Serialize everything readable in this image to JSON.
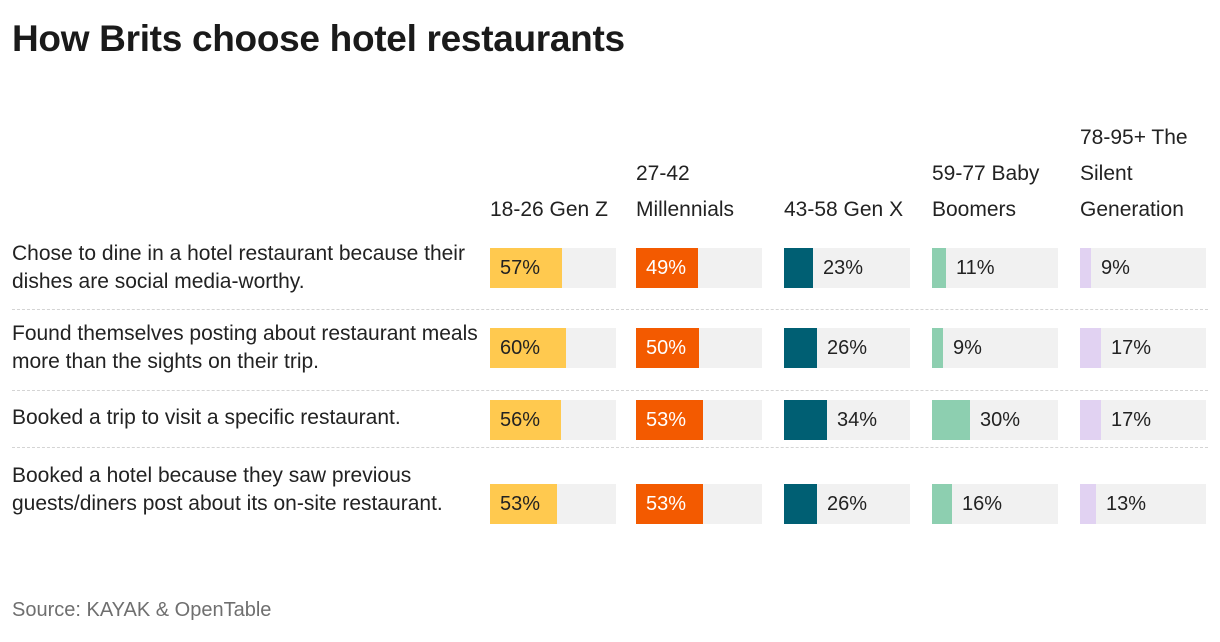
{
  "title": "How Brits choose hotel restaurants",
  "source": "Source: KAYAK & OpenTable",
  "chart_data": {
    "type": "bar",
    "title": "How Brits choose hotel restaurants",
    "xlim": [
      0,
      100
    ],
    "value_suffix": "%",
    "categories": [
      "Chose to dine in a hotel restaurant because their dishes are social media-worthy.",
      "Found themselves posting about restaurant meals more than the sights on their trip.",
      "Booked a trip to visit a specific restaurant.",
      "Booked a hotel because they saw previous guests/diners post about its on-site restaurant."
    ],
    "series": [
      {
        "name": "18-26 Gen Z",
        "color": "#ffc94f",
        "values": [
          57,
          60,
          56,
          53
        ]
      },
      {
        "name": "27-42 Millennials",
        "color": "#f35a00",
        "values": [
          49,
          50,
          53,
          53
        ]
      },
      {
        "name": "43-58 Gen X",
        "color": "#005f73",
        "values": [
          23,
          26,
          34,
          26
        ]
      },
      {
        "name": "59-77 Baby Boomers",
        "color": "#8dcfb0",
        "values": [
          11,
          9,
          30,
          16
        ]
      },
      {
        "name": "78-95+ The Silent Generation",
        "color": "#e1d2f2",
        "values": [
          9,
          17,
          17,
          13
        ]
      }
    ]
  }
}
